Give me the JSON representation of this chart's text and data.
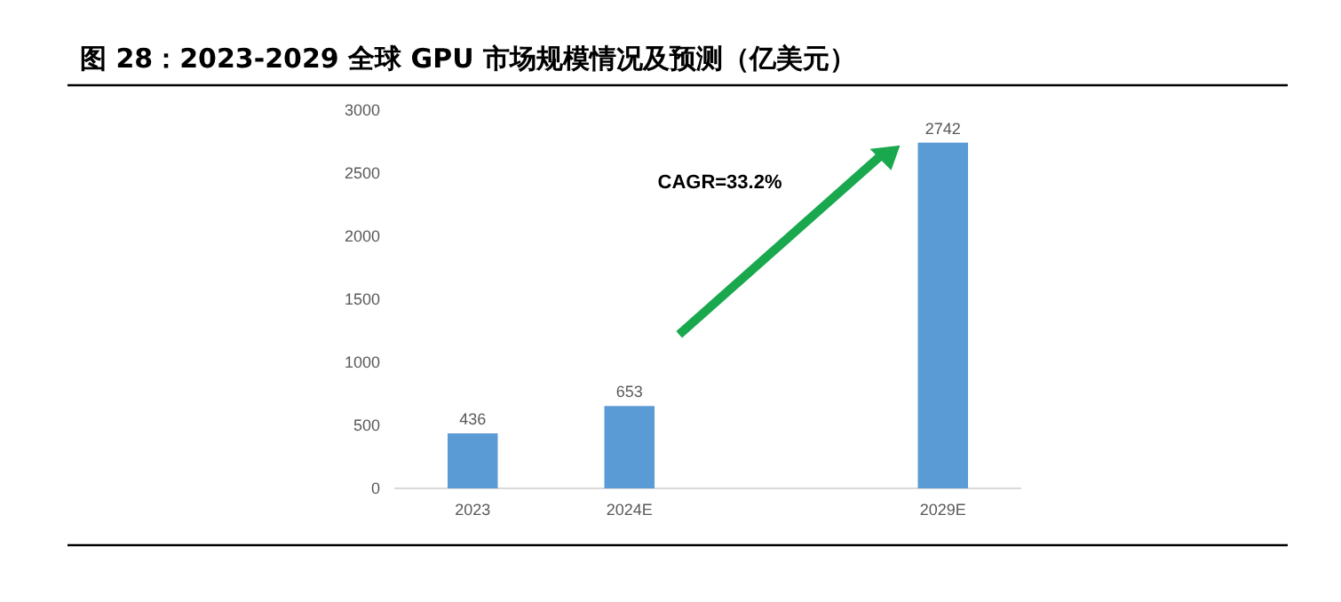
{
  "chart_data": {
    "type": "bar",
    "title": "图 28：2023-2029 全球 GPU 市场规模情况及预测（亿美元）",
    "categories": [
      "2023",
      "2024E",
      null,
      "2029E"
    ],
    "values": [
      436,
      653,
      null,
      2742
    ],
    "color": "#5b9bd5",
    "ylim": [
      0,
      3000
    ],
    "yticks": [
      0,
      500,
      1000,
      1500,
      2000,
      2500,
      3000
    ],
    "grid": false,
    "data_labels": true,
    "annotations": [
      "CAGR=33.2%"
    ]
  }
}
